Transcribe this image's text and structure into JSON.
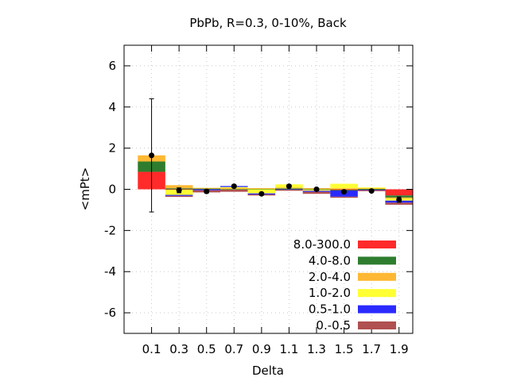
{
  "chart_data": {
    "type": "bar",
    "title": "PbPb, R=0.3, 0-10%, Back",
    "xlabel": "Delta",
    "ylabel": "<mPt>",
    "ylim": [
      -7,
      7
    ],
    "yticks": [
      -6,
      -4,
      -2,
      0,
      2,
      4,
      6
    ],
    "grid": true,
    "legend_position": "bottom-right",
    "categories": [
      "0.1",
      "0.3",
      "0.5",
      "0.7",
      "0.9",
      "1.1",
      "1.3",
      "1.5",
      "1.7",
      "1.9"
    ],
    "series": [
      {
        "name": "8.0-300.0",
        "color": "#ff2a2a",
        "values": [
          0.85,
          -0.02,
          0.02,
          -0.02,
          0.02,
          0.02,
          -0.02,
          -0.03,
          -0.02,
          -0.3
        ]
      },
      {
        "name": "4.0-8.0",
        "color": "#2e7d2e",
        "values": [
          0.5,
          0.05,
          0.02,
          0.01,
          0.01,
          0.02,
          0.01,
          -0.03,
          0.02,
          -0.1
        ]
      },
      {
        "name": "2.0-4.0",
        "color": "#ffb833",
        "values": [
          0.3,
          0.15,
          0.03,
          0.05,
          0.03,
          0.05,
          0.05,
          0.05,
          0.05,
          -0.05
        ]
      },
      {
        "name": "1.0-2.0",
        "color": "#ffff33",
        "values": [
          0.0,
          -0.25,
          0.0,
          0.05,
          -0.2,
          0.15,
          -0.05,
          0.22,
          0.02,
          -0.1
        ]
      },
      {
        "name": "0.5-1.0",
        "color": "#2a2aff",
        "values": [
          0.0,
          -0.05,
          -0.05,
          0.05,
          -0.05,
          -0.02,
          -0.05,
          -0.3,
          -0.02,
          -0.1
        ]
      },
      {
        "name": "0.-0.5",
        "color": "#b05050",
        "values": [
          0.0,
          -0.05,
          -0.1,
          -0.1,
          -0.05,
          -0.05,
          -0.1,
          -0.05,
          -0.05,
          -0.1
        ]
      }
    ],
    "totals": {
      "values": [
        1.65,
        -0.05,
        -0.1,
        0.15,
        -0.22,
        0.15,
        0.0,
        -0.12,
        -0.08,
        -0.5
      ],
      "errors": [
        2.75,
        0.12,
        0.08,
        0.06,
        0.06,
        0.06,
        0.05,
        0.06,
        0.05,
        0.13
      ]
    }
  }
}
